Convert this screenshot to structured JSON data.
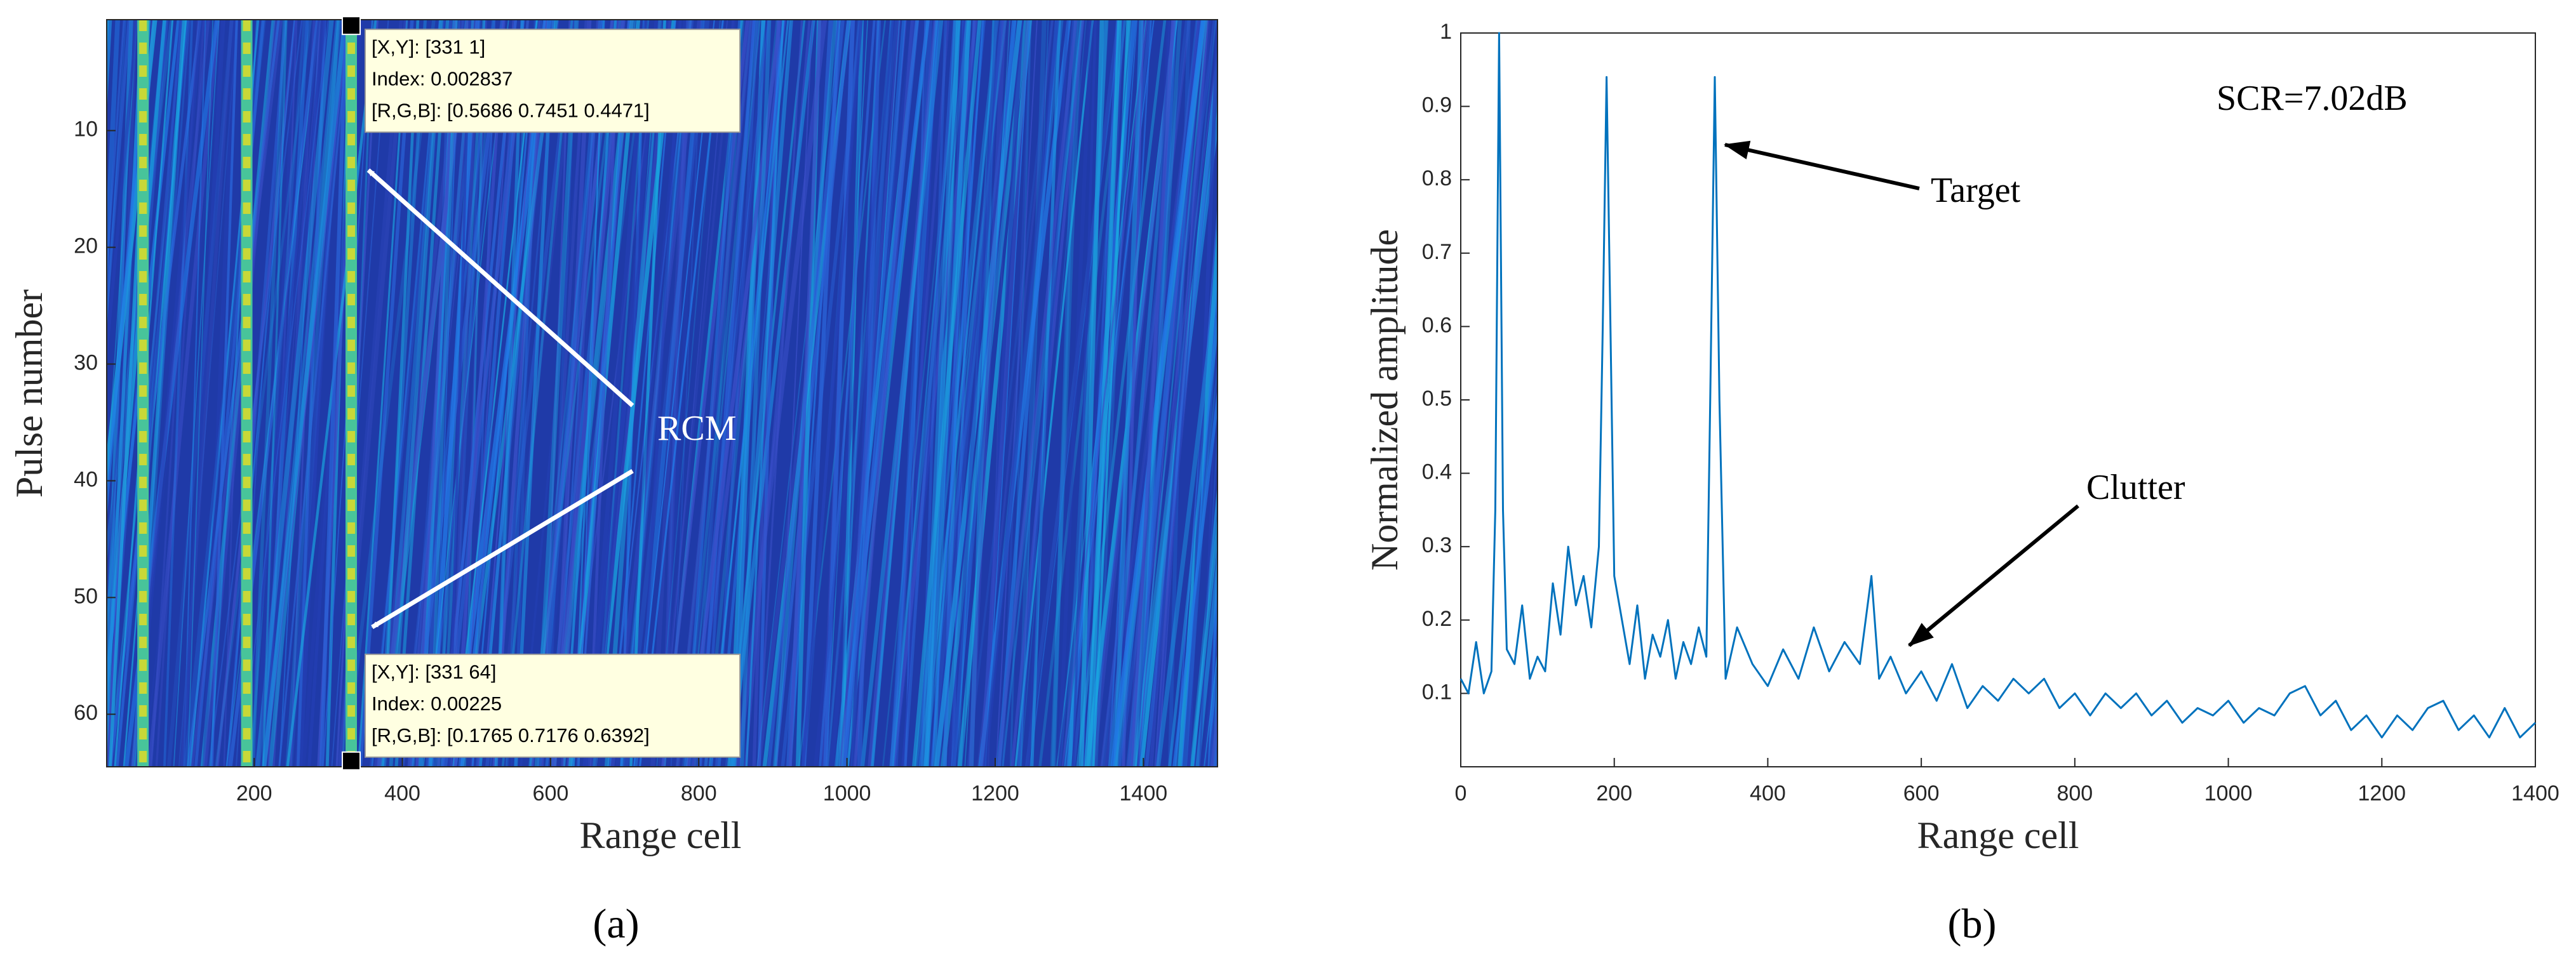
{
  "chart_data": [
    {
      "type": "heatmap",
      "caption": "(a)",
      "xlabel": "Range cell",
      "ylabel": "Pulse number",
      "xlim": [
        1,
        1500
      ],
      "ylim": [
        0.5,
        64.5
      ],
      "y_reversed": true,
      "xticks": [
        200,
        400,
        600,
        800,
        1000,
        1200,
        1400
      ],
      "yticks": [
        10,
        20,
        30,
        40,
        50,
        60
      ],
      "bright_columns": [
        50,
        190,
        331
      ],
      "background_color": "#1f3aa8",
      "column_color": "#c8d838",
      "annotation": "RCM",
      "datatips": [
        {
          "x": 331,
          "y": 1,
          "lines": [
            "[X,Y]: [331 1]",
            "Index: 0.002837",
            "[R,G,B]: [0.5686 0.7451 0.4471]"
          ]
        },
        {
          "x": 331,
          "y": 64,
          "lines": [
            "[X,Y]: [331 64]",
            "Index: 0.00225",
            "[R,G,B]: [0.1765 0.7176 0.6392]"
          ]
        }
      ]
    },
    {
      "type": "line",
      "caption": "(b)",
      "xlabel": "Range cell",
      "ylabel": "Normalized amplitude",
      "xlim": [
        0,
        1400
      ],
      "ylim": [
        0,
        1
      ],
      "xticks": [
        0,
        200,
        400,
        600,
        800,
        1000,
        1200,
        1400
      ],
      "yticks": [
        0.1,
        0.2,
        0.3,
        0.4,
        0.5,
        0.6,
        0.7,
        0.8,
        0.9,
        1
      ],
      "color": "#0072bd",
      "annotations": [
        "SCR=7.02dB",
        "Target",
        "Clutter"
      ],
      "x": [
        0,
        10,
        20,
        30,
        40,
        45,
        50,
        55,
        60,
        70,
        80,
        90,
        100,
        110,
        120,
        130,
        140,
        150,
        160,
        170,
        180,
        185,
        190,
        195,
        200,
        210,
        220,
        230,
        240,
        250,
        260,
        270,
        280,
        290,
        300,
        310,
        320,
        325,
        331,
        337,
        345,
        360,
        380,
        400,
        420,
        440,
        460,
        480,
        500,
        520,
        535,
        545,
        560,
        580,
        600,
        620,
        640,
        660,
        680,
        700,
        720,
        740,
        760,
        780,
        800,
        820,
        840,
        860,
        880,
        900,
        920,
        940,
        960,
        980,
        1000,
        1020,
        1040,
        1060,
        1080,
        1100,
        1120,
        1140,
        1160,
        1180,
        1200,
        1220,
        1240,
        1260,
        1280,
        1300,
        1320,
        1340,
        1360,
        1380,
        1400
      ],
      "values": [
        0.12,
        0.1,
        0.17,
        0.1,
        0.13,
        0.35,
        1.0,
        0.35,
        0.16,
        0.14,
        0.22,
        0.12,
        0.15,
        0.13,
        0.25,
        0.18,
        0.3,
        0.22,
        0.26,
        0.19,
        0.3,
        0.6,
        0.94,
        0.6,
        0.26,
        0.2,
        0.14,
        0.22,
        0.12,
        0.18,
        0.15,
        0.2,
        0.12,
        0.17,
        0.14,
        0.19,
        0.15,
        0.5,
        0.94,
        0.5,
        0.12,
        0.19,
        0.14,
        0.11,
        0.16,
        0.12,
        0.19,
        0.13,
        0.17,
        0.14,
        0.26,
        0.12,
        0.15,
        0.1,
        0.13,
        0.09,
        0.14,
        0.08,
        0.11,
        0.09,
        0.12,
        0.1,
        0.12,
        0.08,
        0.1,
        0.07,
        0.1,
        0.08,
        0.1,
        0.07,
        0.09,
        0.06,
        0.08,
        0.07,
        0.09,
        0.06,
        0.08,
        0.07,
        0.1,
        0.11,
        0.07,
        0.09,
        0.05,
        0.07,
        0.04,
        0.07,
        0.05,
        0.08,
        0.09,
        0.05,
        0.07,
        0.04,
        0.08,
        0.04,
        0.06
      ]
    }
  ]
}
